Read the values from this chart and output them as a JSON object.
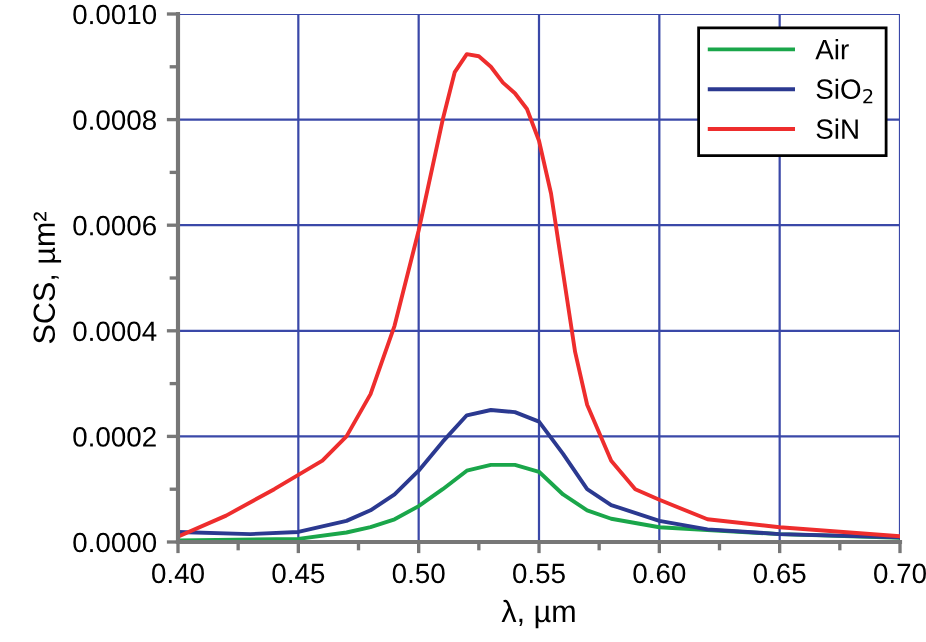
{
  "chart_data": {
    "type": "line",
    "xlabel": "λ, µm",
    "ylabel": "SCS, µm²",
    "x": [
      0.4,
      0.42,
      0.44,
      0.45,
      0.46,
      0.47,
      0.48,
      0.49,
      0.5,
      0.51,
      0.515,
      0.52,
      0.525,
      0.53,
      0.535,
      0.54,
      0.545,
      0.55,
      0.555,
      0.56,
      0.565,
      0.57,
      0.58,
      0.59,
      0.6,
      0.62,
      0.65,
      0.7
    ],
    "series": [
      {
        "name": "Air",
        "color": "#1aa64a",
        "x": [
          0.4,
          0.45,
          0.47,
          0.48,
          0.49,
          0.5,
          0.51,
          0.52,
          0.53,
          0.54,
          0.55,
          0.56,
          0.57,
          0.58,
          0.6,
          0.65,
          0.7
        ],
        "values": [
          3e-06,
          6e-06,
          1.8e-05,
          2.8e-05,
          4.3e-05,
          6.8e-05,
          0.0001,
          0.000135,
          0.000146,
          0.000146,
          0.000133,
          9e-05,
          6e-05,
          4.4e-05,
          2.8e-05,
          1.5e-05,
          8e-06
        ]
      },
      {
        "name": "SiO$_{2}$",
        "color": "#2b3990",
        "x": [
          0.4,
          0.43,
          0.45,
          0.47,
          0.48,
          0.49,
          0.5,
          0.51,
          0.52,
          0.53,
          0.54,
          0.55,
          0.56,
          0.57,
          0.58,
          0.6,
          0.62,
          0.65,
          0.7
        ],
        "values": [
          1.9e-05,
          1.5e-05,
          1.9e-05,
          4e-05,
          6e-05,
          9e-05,
          0.000135,
          0.00019,
          0.00024,
          0.00025,
          0.000246,
          0.000228,
          0.000167,
          0.0001,
          7e-05,
          4e-05,
          2.4e-05,
          1.5e-05,
          9e-06
        ]
      },
      {
        "name": "SiN",
        "color": "#ee2d2d",
        "values": [
          1e-05,
          5e-05,
          0.0001,
          0.000127,
          0.000154,
          0.0002,
          0.00028,
          0.00041,
          0.00059,
          0.0008,
          0.00089,
          0.000924,
          0.00092,
          0.0009,
          0.00087,
          0.00085,
          0.00082,
          0.00076,
          0.00066,
          0.00051,
          0.00036,
          0.00026,
          0.000154,
          0.0001,
          8e-05,
          4.3e-05,
          2.8e-05,
          1.1e-05
        ]
      }
    ],
    "xlim": [
      0.4,
      0.7
    ],
    "xticks": [
      {
        "value": 0.4,
        "label": "0.40"
      },
      {
        "value": 0.45,
        "label": "0.45"
      },
      {
        "value": 0.5,
        "label": "0.50"
      },
      {
        "value": 0.55,
        "label": "0.55"
      },
      {
        "value": 0.6,
        "label": "0.60"
      },
      {
        "value": 0.65,
        "label": "0.65"
      },
      {
        "value": 0.7,
        "label": "0.70"
      }
    ],
    "ylim": [
      0,
      0.001
    ],
    "yticks": [
      {
        "value": 0,
        "label": "0.0000"
      },
      {
        "value": 0.0002,
        "label": "0.0002"
      },
      {
        "value": 0.0004,
        "label": "0.0004"
      },
      {
        "value": 0.0006,
        "label": "0.0006"
      },
      {
        "value": 0.0008,
        "label": "0.0008"
      },
      {
        "value": 0.001,
        "label": "0.0010"
      }
    ],
    "grid": true,
    "legend": "top right",
    "marker": "none",
    "line_style": "solid"
  }
}
